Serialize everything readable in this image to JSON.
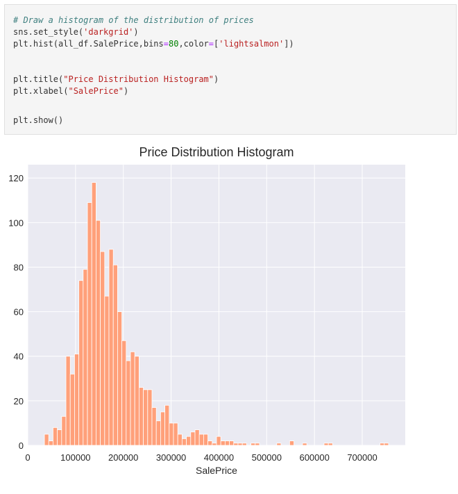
{
  "code": {
    "lines": [
      [
        {
          "t": "# Draw a histogram of the distribution of prices",
          "c": "cmt"
        }
      ],
      [
        {
          "t": "sns.set_style(",
          "c": ""
        },
        {
          "t": "'darkgrid'",
          "c": "str"
        },
        {
          "t": ")",
          "c": ""
        }
      ],
      [
        {
          "t": "plt.hist(all_df.SalePrice,bins",
          "c": ""
        },
        {
          "t": "=",
          "c": "op"
        },
        {
          "t": "80",
          "c": "num"
        },
        {
          "t": ",color",
          "c": ""
        },
        {
          "t": "=",
          "c": "op"
        },
        {
          "t": "[",
          "c": ""
        },
        {
          "t": "'lightsalmon'",
          "c": "str"
        },
        {
          "t": "])",
          "c": ""
        }
      ],
      [],
      [
        {
          "t": "plt.title(",
          "c": ""
        },
        {
          "t": "\"Price Distribution Histogram\"",
          "c": "str"
        },
        {
          "t": ")",
          "c": ""
        }
      ],
      [
        {
          "t": "plt.xlabel(",
          "c": ""
        },
        {
          "t": "\"SalePrice\"",
          "c": "str"
        },
        {
          "t": ")",
          "c": ""
        }
      ],
      [],
      [],
      [
        {
          "t": "plt.show()",
          "c": ""
        }
      ]
    ]
  },
  "chart_data": {
    "type": "bar",
    "title": "Price Distribution Histogram",
    "xlabel": "SalePrice",
    "ylabel": "",
    "xlim": [
      0,
      790000
    ],
    "ylim": [
      0,
      126
    ],
    "x_ticks": [
      0,
      100000,
      200000,
      300000,
      400000,
      500000,
      600000,
      700000
    ],
    "x_tick_labels": [
      "0",
      "100000",
      "200000",
      "300000",
      "400000",
      "500000",
      "600000",
      "700000"
    ],
    "y_ticks": [
      0,
      20,
      40,
      60,
      80,
      100,
      120
    ],
    "y_tick_labels": [
      "0",
      "20",
      "40",
      "60",
      "80",
      "100",
      "120"
    ],
    "bin_start": 34900,
    "bin_width": 9002,
    "counts": [
      5,
      2,
      8,
      7,
      13,
      40,
      32,
      41,
      74,
      79,
      109,
      118,
      101,
      87,
      67,
      88,
      81,
      60,
      47,
      38,
      42,
      40,
      26,
      25,
      25,
      17,
      11,
      15,
      18,
      10,
      10,
      5,
      3,
      4,
      6,
      7,
      5,
      5,
      2,
      1,
      4,
      2,
      2,
      2,
      1,
      1,
      1,
      0,
      1,
      1,
      0,
      0,
      0,
      0,
      1,
      0,
      0,
      2,
      0,
      0,
      1,
      0,
      0,
      0,
      0,
      1,
      1,
      0,
      0,
      0,
      0,
      0,
      0,
      0,
      0,
      0,
      0,
      0,
      1,
      1
    ],
    "style": "darkgrid",
    "colors": {
      "bar": "#ffa07a",
      "bar_edge": "#ffffff",
      "plot_bg": "#eaeaf2",
      "grid": "#ffffff"
    }
  }
}
